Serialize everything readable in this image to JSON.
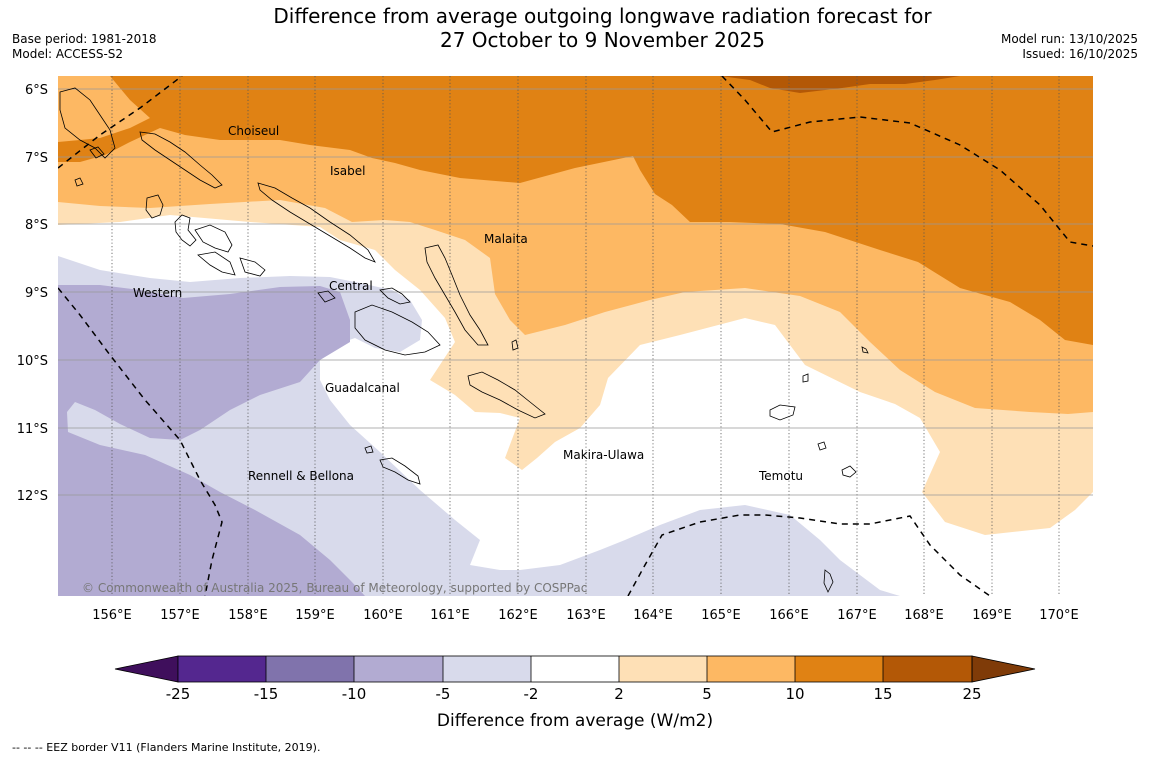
{
  "header": {
    "title_line1": "Difference from average outgoing longwave radiation forecast for",
    "title_line2": "27 October to 9 November 2025",
    "base_period": "Base period: 1981-2018",
    "model": "Model: ACCESS-S2",
    "model_run": "Model run: 13/10/2025",
    "issued": "Issued: 16/10/2025"
  },
  "map": {
    "latitude_labels": [
      "6°S",
      "7°S",
      "8°S",
      "9°S",
      "10°S",
      "11°S",
      "12°S"
    ],
    "longitude_labels": [
      "156°E",
      "157°E",
      "158°E",
      "159°E",
      "160°E",
      "161°E",
      "162°E",
      "163°E",
      "164°E",
      "165°E",
      "166°E",
      "167°E",
      "168°E",
      "169°E",
      "170°E"
    ],
    "regions": [
      "Choiseul",
      "Isabel",
      "Malaita",
      "Western",
      "Central",
      "Guadalcanal",
      "Makira-Ulawa",
      "Rennell & Bellona",
      "Temotu"
    ],
    "copyright": "© Commonwealth of Australia 2025, Bureau of Meteorology, supported by COSPPac"
  },
  "colorbar": {
    "ticks": [
      "-25",
      "-15",
      "-10",
      "-5",
      "-2",
      "2",
      "5",
      "10",
      "15",
      "25"
    ],
    "colors": [
      "#3f0f5c",
      "#54278f",
      "#8073ac",
      "#b2abd2",
      "#d8daeb",
      "#ffffff",
      "#fee0b6",
      "#fdb863",
      "#e08214",
      "#b35806",
      "#7f3b08"
    ],
    "title": "Difference from average (W/m2)"
  },
  "footer": {
    "legend": "--  --  -- EEZ border V11 (Flanders Marine Institute, 2019)."
  }
}
